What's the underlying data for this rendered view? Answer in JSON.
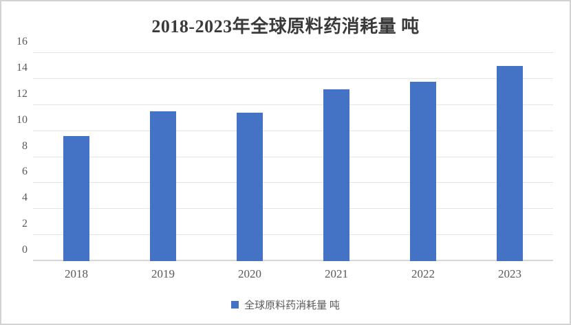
{
  "chart_data": {
    "type": "bar",
    "title": "2018-2023年全球原料药消耗量 吨",
    "categories": [
      "2018",
      "2019",
      "2020",
      "2021",
      "2022",
      "2023"
    ],
    "values": [
      9.6,
      11.5,
      11.4,
      13.2,
      13.8,
      15.0
    ],
    "series_name": "全球原料药消耗量 吨",
    "xlabel": "",
    "ylabel": "",
    "ylim": [
      0,
      16
    ],
    "ytick_interval": 2,
    "ytick_labels": [
      "0",
      "2",
      "4",
      "6",
      "8",
      "10",
      "12",
      "14",
      "16"
    ],
    "grid": "horizontal",
    "legend_position": "bottom",
    "bar_color": "#4472C4",
    "gridline_color": "#e4e4e4",
    "axis_line_color": "#d6d6d6",
    "title_color": "#3a3a3a",
    "tick_label_color": "#595959"
  },
  "legend": {
    "label": "全球原料药消耗量 吨",
    "swatch_icon": "filled-square",
    "swatch_color": "#4472C4"
  }
}
